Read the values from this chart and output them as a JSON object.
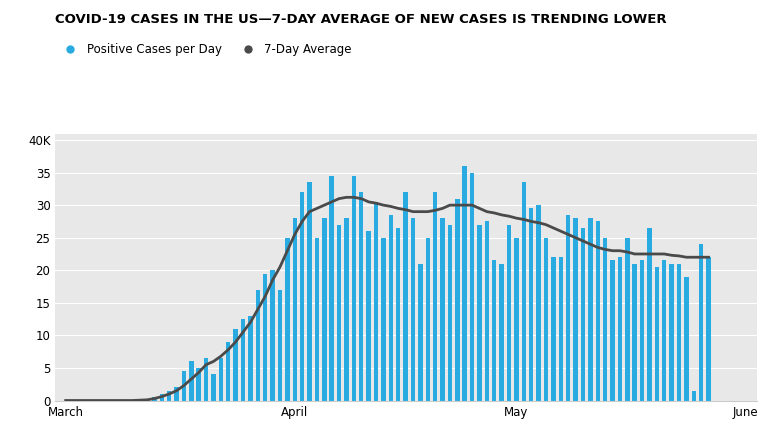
{
  "title": "COVID-19 CASES IN THE US—7-DAY AVERAGE OF NEW CASES IS TRENDING LOWER",
  "legend_labels": [
    "Positive Cases per Day",
    "7-Day Average"
  ],
  "bar_color": "#29ABE2",
  "line_color": "#4A4A4A",
  "background_color": "#E8E8E8",
  "figure_background": "#FFFFFF",
  "yticks": [
    0,
    5,
    10,
    15,
    20,
    25,
    30,
    35,
    40
  ],
  "ytick_labels": [
    "0",
    "5",
    "10",
    "15",
    "20",
    "25",
    "30",
    "35",
    "40K"
  ],
  "ylim": [
    0,
    41
  ],
  "xlabel_ticks": [
    "March",
    "April",
    "May",
    "June"
  ],
  "daily_cases": [
    0.0,
    0.0,
    0.0,
    0.0,
    0.0,
    0.0,
    0.0,
    0.0,
    0.0,
    0.0,
    0.1,
    0.2,
    0.5,
    1.0,
    1.5,
    2.0,
    4.5,
    6.0,
    5.0,
    6.5,
    4.0,
    6.5,
    9.0,
    11.0,
    12.5,
    13.0,
    17.0,
    19.5,
    20.0,
    17.0,
    25.0,
    28.0,
    32.0,
    33.5,
    25.0,
    28.0,
    34.5,
    27.0,
    28.0,
    34.5,
    32.0,
    26.0,
    30.5,
    25.0,
    28.5,
    26.5,
    32.0,
    28.0,
    21.0,
    25.0,
    32.0,
    28.0,
    27.0,
    31.0,
    36.0,
    35.0,
    27.0,
    27.5,
    21.5,
    21.0,
    27.0,
    25.0,
    33.5,
    29.5,
    30.0,
    25.0,
    22.0,
    22.0,
    28.5,
    28.0,
    26.5,
    28.0,
    27.5,
    25.0,
    21.5,
    22.0,
    25.0,
    21.0,
    21.5,
    26.5,
    20.5,
    21.5,
    21.0,
    21.0,
    19.0,
    1.5,
    24.0,
    22.0
  ],
  "seven_day_avg": [
    0.0,
    0.0,
    0.0,
    0.0,
    0.0,
    0.0,
    0.0,
    0.0,
    0.0,
    0.0,
    0.05,
    0.1,
    0.3,
    0.6,
    1.0,
    1.5,
    2.3,
    3.3,
    4.3,
    5.5,
    6.0,
    6.8,
    7.8,
    9.0,
    10.5,
    12.0,
    14.0,
    16.0,
    18.5,
    20.5,
    23.0,
    25.5,
    27.5,
    29.0,
    29.5,
    30.0,
    30.5,
    31.0,
    31.2,
    31.2,
    31.0,
    30.5,
    30.3,
    30.0,
    29.8,
    29.5,
    29.3,
    29.0,
    29.0,
    29.0,
    29.2,
    29.5,
    30.0,
    30.0,
    30.0,
    30.0,
    29.5,
    29.0,
    28.8,
    28.5,
    28.3,
    28.0,
    27.8,
    27.5,
    27.3,
    27.0,
    26.5,
    26.0,
    25.5,
    25.0,
    24.5,
    24.0,
    23.5,
    23.2,
    23.0,
    23.0,
    22.8,
    22.5,
    22.5,
    22.5,
    22.5,
    22.5,
    22.3,
    22.2,
    22.0,
    22.0,
    22.0,
    22.0
  ],
  "n_march": 31,
  "n_april": 30,
  "n_may": 31,
  "title_fontsize": 9.5,
  "tick_fontsize": 8.5,
  "legend_fontsize": 8.5
}
